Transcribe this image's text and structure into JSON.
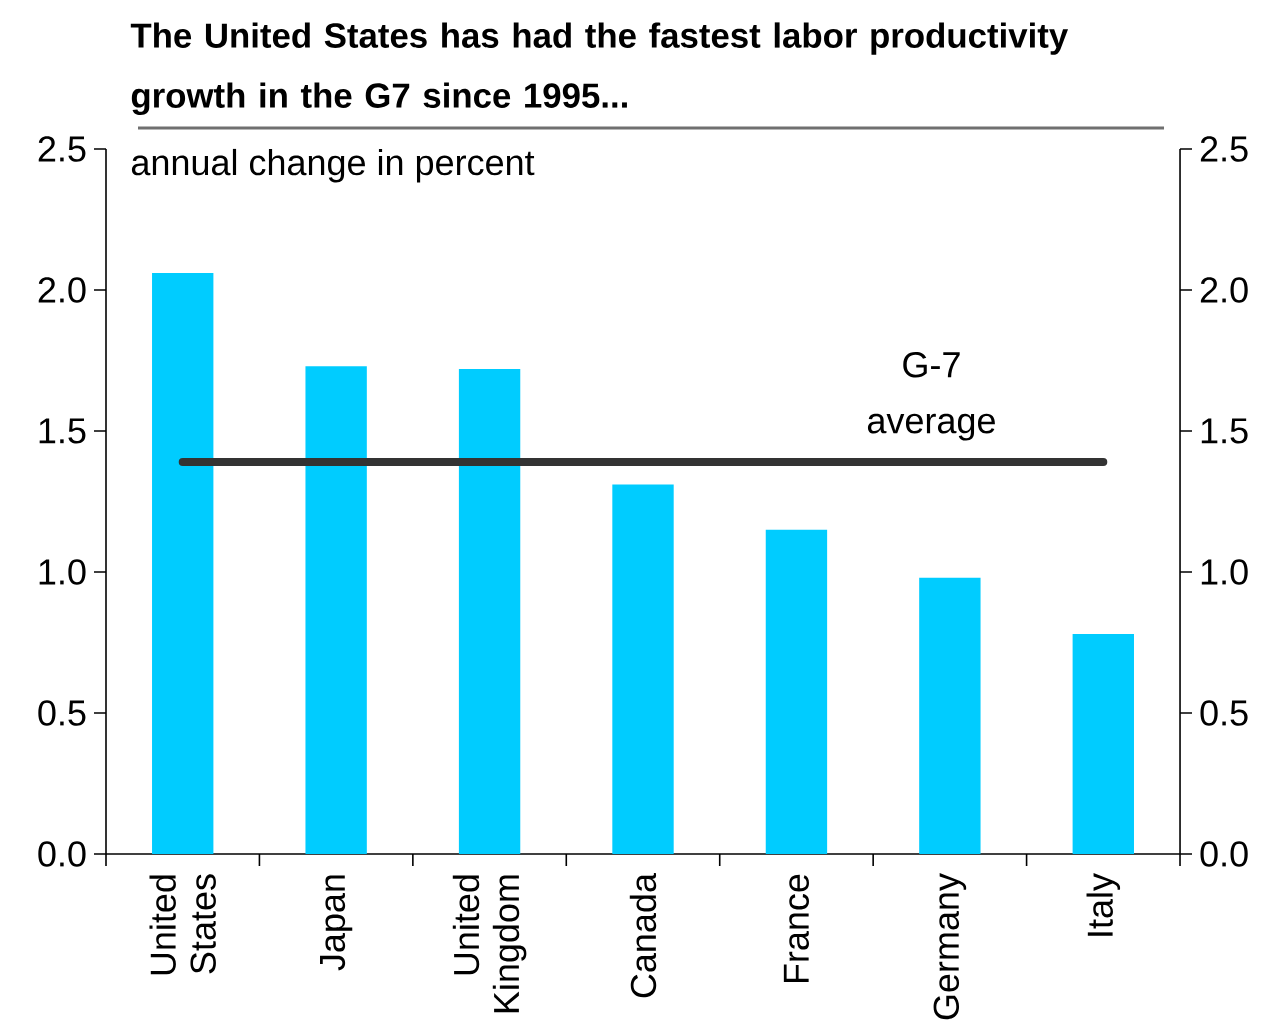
{
  "chart_data": {
    "type": "bar",
    "title": "The United States has had the fastest labor productivity growth in the G7 since 1995...",
    "subtitle": "annual change in percent",
    "categories": [
      "United States",
      "Japan",
      "United Kingdom",
      "Canada",
      "France",
      "Germany",
      "Italy"
    ],
    "values": [
      2.06,
      1.73,
      1.72,
      1.31,
      1.15,
      0.98,
      0.78
    ],
    "color": "#00ccff",
    "ylim": [
      0,
      2.5
    ],
    "yticks": [
      {
        "value": 0,
        "label": "0.0"
      },
      0.5,
      {
        "value": 1,
        "label": "1.0"
      },
      1.5,
      {
        "value": 2,
        "label": "2.0"
      },
      2.5
    ],
    "y2lim": [
      0,
      2.5
    ],
    "y2ticks": [
      {
        "value": 0,
        "label": "0.0"
      },
      0.5,
      {
        "value": 1,
        "label": "1.0"
      },
      1.5,
      {
        "value": 2,
        "label": "2.0"
      },
      2.5
    ],
    "ref_lines": [
      {
        "axis": "y",
        "value": 1.39,
        "label": "G-7 average",
        "color": "#333333",
        "line_style": "solid"
      }
    ]
  }
}
